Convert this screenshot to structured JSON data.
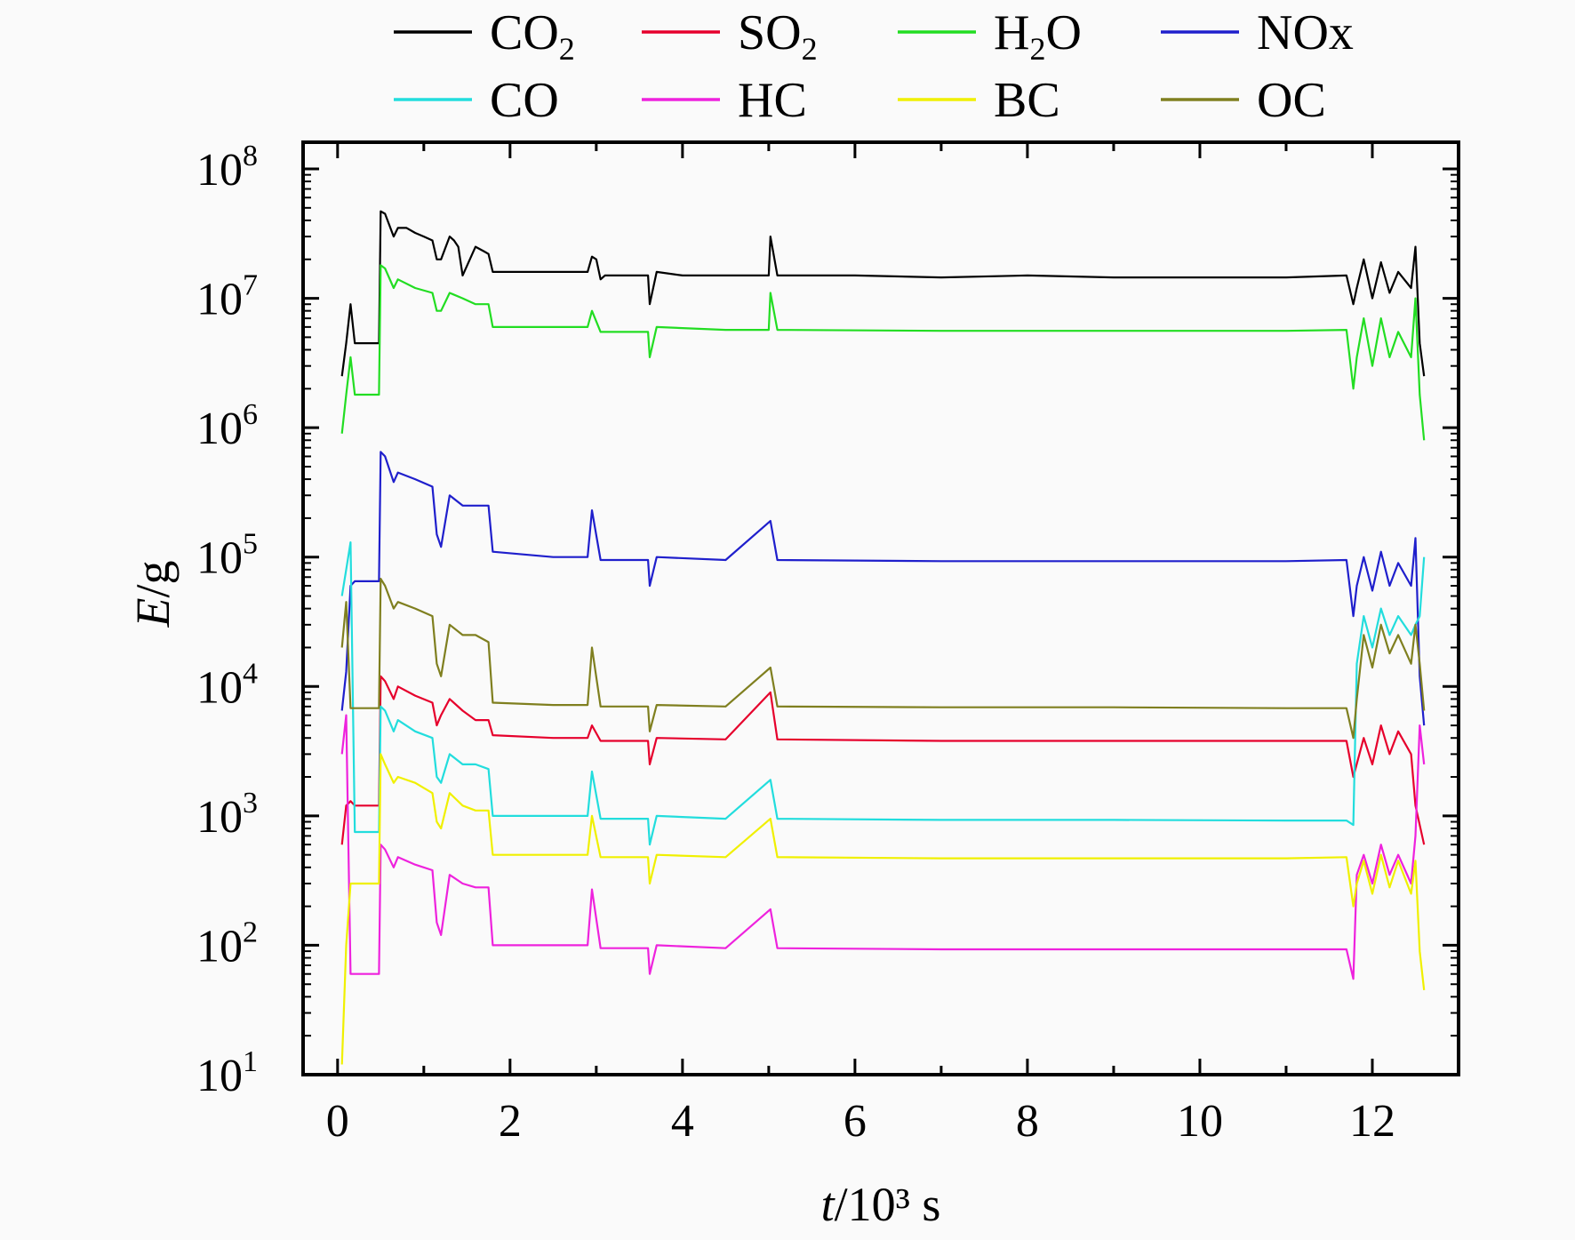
{
  "chart_data": {
    "type": "line",
    "title": "",
    "xlabel": {
      "italic": "t",
      "text": "/10³ s"
    },
    "ylabel": {
      "italic": "E",
      "text": "/g"
    },
    "xlim": [
      -0.4,
      13.0
    ],
    "ylim": [
      10,
      100000000
    ],
    "y_scale": "log",
    "grid": false,
    "legend_position": "top",
    "x_ticks": [
      {
        "value": 0,
        "label": "0"
      },
      {
        "value": 2,
        "label": "2"
      },
      {
        "value": 4,
        "label": "4"
      },
      {
        "value": 6,
        "label": "6"
      },
      {
        "value": 8,
        "label": "8"
      },
      {
        "value": 10,
        "label": "10"
      },
      {
        "value": 12,
        "label": "12"
      }
    ],
    "y_ticks": [
      {
        "value": 10,
        "base": "10",
        "exp": "1"
      },
      {
        "value": 100,
        "base": "10",
        "exp": "2"
      },
      {
        "value": 1000,
        "base": "10",
        "exp": "3"
      },
      {
        "value": 10000,
        "base": "10",
        "exp": "4"
      },
      {
        "value": 100000,
        "base": "10",
        "exp": "5"
      },
      {
        "value": 1000000,
        "base": "10",
        "exp": "6"
      },
      {
        "value": 10000000,
        "base": "10",
        "exp": "7"
      },
      {
        "value": 100000000,
        "base": "10",
        "exp": "8"
      }
    ],
    "series": [
      {
        "name": "CO2",
        "label_base": "CO",
        "label_sub": "2",
        "color": "#000000",
        "x": [
          0.05,
          0.1,
          0.15,
          0.2,
          0.3,
          0.48,
          0.5,
          0.55,
          0.65,
          0.7,
          0.8,
          0.9,
          1.0,
          1.1,
          1.15,
          1.2,
          1.3,
          1.35,
          1.4,
          1.45,
          1.6,
          1.7,
          1.75,
          1.8,
          2.0,
          2.5,
          2.9,
          2.95,
          3.0,
          3.05,
          3.1,
          3.3,
          3.6,
          3.62,
          3.7,
          4.0,
          4.5,
          4.9,
          5.0,
          5.02,
          5.1,
          6.0,
          7.0,
          8.0,
          9.0,
          10.0,
          11.0,
          11.7,
          11.78,
          11.82,
          11.9,
          12.0,
          12.1,
          12.2,
          12.3,
          12.45,
          12.5,
          12.55,
          12.6
        ],
        "y": [
          2500000,
          4500000,
          9000000,
          4500000,
          4500000,
          4500000,
          47000000,
          45000000,
          30000000,
          35000000,
          35000000,
          32000000,
          30000000,
          28000000,
          20000000,
          20000000,
          30000000,
          28000000,
          25000000,
          15000000,
          25000000,
          23000000,
          22000000,
          16000000,
          16000000,
          16000000,
          16000000,
          21000000,
          20000000,
          14000000,
          15000000,
          15000000,
          15000000,
          9000000,
          16000000,
          15000000,
          15000000,
          15000000,
          15000000,
          30000000,
          15000000,
          15000000,
          14500000,
          15000000,
          14500000,
          14500000,
          14500000,
          15000000,
          9000000,
          12000000,
          20000000,
          10000000,
          19000000,
          11000000,
          16000000,
          12000000,
          25000000,
          4500000,
          2500000
        ]
      },
      {
        "name": "SO2",
        "label_base": "SO",
        "label_sub": "2",
        "color": "#e6002c",
        "x": [
          0.05,
          0.1,
          0.15,
          0.2,
          0.48,
          0.5,
          0.55,
          0.65,
          0.7,
          0.9,
          1.1,
          1.15,
          1.2,
          1.3,
          1.45,
          1.6,
          1.75,
          1.8,
          2.5,
          2.9,
          2.95,
          3.05,
          3.6,
          3.62,
          3.7,
          4.5,
          5.02,
          5.1,
          7.0,
          9.0,
          11.0,
          11.7,
          11.78,
          11.9,
          12.0,
          12.1,
          12.2,
          12.3,
          12.45,
          12.5,
          12.6
        ],
        "y": [
          600,
          1200,
          1300,
          1200,
          1200,
          12000,
          11000,
          8000,
          10000,
          8500,
          7500,
          5000,
          6000,
          8000,
          6500,
          5500,
          5500,
          4200,
          4000,
          4000,
          5000,
          3800,
          3800,
          2500,
          4000,
          3900,
          9000,
          3900,
          3800,
          3800,
          3800,
          3800,
          2000,
          4000,
          2500,
          5000,
          3000,
          4500,
          3000,
          1200,
          600
        ]
      },
      {
        "name": "H2O",
        "label_base": "H",
        "label_sub": "2",
        "label_tail": "O",
        "color": "#22dd22",
        "x": [
          0.05,
          0.1,
          0.15,
          0.2,
          0.3,
          0.48,
          0.5,
          0.55,
          0.65,
          0.7,
          0.9,
          1.1,
          1.15,
          1.2,
          1.3,
          1.45,
          1.6,
          1.75,
          1.8,
          2.5,
          2.9,
          2.95,
          3.05,
          3.6,
          3.62,
          3.7,
          4.5,
          5.0,
          5.02,
          5.1,
          7.0,
          9.0,
          11.0,
          11.7,
          11.78,
          11.82,
          11.9,
          12.0,
          12.1,
          12.2,
          12.3,
          12.45,
          12.5,
          12.55,
          12.6
        ],
        "y": [
          900000,
          1800000,
          3500000,
          1800000,
          1800000,
          1800000,
          18000000,
          17000000,
          12000000,
          14000000,
          12000000,
          11000000,
          8000000,
          8000000,
          11000000,
          10000000,
          9000000,
          9000000,
          6000000,
          6000000,
          6000000,
          8000000,
          5500000,
          5500000,
          3500000,
          6000000,
          5700000,
          5700000,
          11000000,
          5700000,
          5600000,
          5600000,
          5600000,
          5700000,
          2000000,
          3500000,
          7000000,
          3000000,
          7000000,
          3500000,
          5500000,
          3500000,
          10000000,
          1800000,
          800000
        ]
      },
      {
        "name": "NOx",
        "label": "NOx",
        "color": "#1f1fcc",
        "x": [
          0.05,
          0.1,
          0.15,
          0.2,
          0.48,
          0.5,
          0.55,
          0.65,
          0.7,
          0.9,
          1.1,
          1.15,
          1.2,
          1.3,
          1.45,
          1.6,
          1.75,
          1.8,
          2.5,
          2.9,
          2.95,
          3.05,
          3.6,
          3.62,
          3.7,
          4.5,
          5.02,
          5.1,
          7.0,
          9.0,
          11.0,
          11.7,
          11.78,
          11.82,
          11.9,
          12.0,
          12.1,
          12.2,
          12.3,
          12.45,
          12.5,
          12.55,
          12.6
        ],
        "y": [
          6500,
          13000,
          60000,
          65000,
          65000,
          650000,
          600000,
          380000,
          450000,
          400000,
          350000,
          150000,
          120000,
          300000,
          250000,
          250000,
          250000,
          110000,
          100000,
          100000,
          230000,
          95000,
          95000,
          60000,
          100000,
          95000,
          190000,
          95000,
          93000,
          93000,
          93000,
          95000,
          35000,
          60000,
          100000,
          55000,
          110000,
          60000,
          90000,
          60000,
          140000,
          12000,
          5000
        ]
      },
      {
        "name": "CO",
        "label": "CO",
        "color": "#22dddd",
        "x": [
          0.05,
          0.1,
          0.15,
          0.2,
          0.48,
          0.5,
          0.55,
          0.65,
          0.7,
          0.9,
          1.1,
          1.15,
          1.2,
          1.3,
          1.45,
          1.6,
          1.75,
          1.8,
          2.5,
          2.9,
          2.95,
          3.05,
          3.6,
          3.62,
          3.7,
          4.5,
          5.02,
          5.1,
          7.0,
          9.0,
          11.0,
          11.7,
          11.78,
          11.82,
          11.9,
          12.0,
          12.1,
          12.2,
          12.3,
          12.45,
          12.5,
          12.55,
          12.6
        ],
        "y": [
          50000,
          80000,
          130000,
          750,
          750,
          7000,
          6500,
          4500,
          5500,
          4500,
          4000,
          2000,
          1800,
          3000,
          2500,
          2500,
          2300,
          1000,
          1000,
          1000,
          2200,
          950,
          950,
          600,
          1000,
          950,
          1900,
          950,
          930,
          930,
          920,
          920,
          850,
          15000,
          35000,
          20000,
          40000,
          25000,
          35000,
          25000,
          30000,
          35000,
          100000
        ]
      },
      {
        "name": "HC",
        "label": "HC",
        "color": "#ee22dd",
        "x": [
          0.05,
          0.1,
          0.15,
          0.2,
          0.48,
          0.5,
          0.55,
          0.65,
          0.7,
          0.9,
          1.1,
          1.15,
          1.2,
          1.3,
          1.45,
          1.6,
          1.75,
          1.8,
          2.5,
          2.9,
          2.95,
          3.05,
          3.6,
          3.62,
          3.7,
          4.5,
          5.02,
          5.1,
          7.0,
          9.0,
          11.0,
          11.7,
          11.78,
          11.82,
          11.9,
          12.0,
          12.1,
          12.2,
          12.3,
          12.45,
          12.5,
          12.55,
          12.6
        ],
        "y": [
          3000,
          6000,
          60,
          60,
          60,
          600,
          550,
          400,
          480,
          420,
          380,
          150,
          120,
          350,
          300,
          280,
          280,
          100,
          100,
          100,
          270,
          95,
          95,
          60,
          100,
          95,
          190,
          95,
          93,
          93,
          93,
          93,
          55,
          350,
          500,
          300,
          600,
          350,
          500,
          300,
          700,
          5000,
          2500
        ]
      },
      {
        "name": "BC",
        "label": "BC",
        "color": "#f0f000",
        "x": [
          0.05,
          0.1,
          0.15,
          0.2,
          0.48,
          0.5,
          0.55,
          0.65,
          0.7,
          0.9,
          1.1,
          1.15,
          1.2,
          1.3,
          1.45,
          1.6,
          1.75,
          1.8,
          2.5,
          2.9,
          2.95,
          3.05,
          3.6,
          3.62,
          3.7,
          4.5,
          5.02,
          5.1,
          7.0,
          9.0,
          11.0,
          11.7,
          11.78,
          11.82,
          11.9,
          12.0,
          12.1,
          12.2,
          12.3,
          12.45,
          12.5,
          12.55,
          12.6
        ],
        "y": [
          12,
          100,
          300,
          300,
          300,
          3000,
          2500,
          1800,
          2000,
          1800,
          1500,
          900,
          800,
          1500,
          1200,
          1100,
          1100,
          500,
          500,
          500,
          1000,
          480,
          480,
          300,
          500,
          480,
          950,
          480,
          470,
          470,
          470,
          480,
          200,
          300,
          450,
          250,
          500,
          280,
          450,
          250,
          450,
          90,
          45
        ]
      },
      {
        "name": "OC",
        "label": "OC",
        "color": "#7f7f1f",
        "x": [
          0.05,
          0.1,
          0.15,
          0.2,
          0.48,
          0.5,
          0.55,
          0.65,
          0.7,
          0.9,
          1.1,
          1.15,
          1.2,
          1.3,
          1.45,
          1.6,
          1.75,
          1.8,
          2.5,
          2.9,
          2.95,
          3.05,
          3.6,
          3.62,
          3.7,
          4.5,
          5.02,
          5.1,
          7.0,
          9.0,
          11.0,
          11.7,
          11.78,
          11.82,
          11.9,
          12.0,
          12.1,
          12.2,
          12.3,
          12.45,
          12.5,
          12.55,
          12.6
        ],
        "y": [
          20000,
          45000,
          6800,
          6800,
          6800,
          68000,
          60000,
          40000,
          45000,
          40000,
          35000,
          15000,
          12000,
          30000,
          25000,
          25000,
          22000,
          7500,
          7200,
          7200,
          20000,
          7000,
          7000,
          4500,
          7200,
          7000,
          14000,
          7000,
          6900,
          6900,
          6800,
          6800,
          4000,
          8000,
          25000,
          14000,
          30000,
          18000,
          25000,
          15000,
          30000,
          15000,
          6500
        ]
      }
    ]
  }
}
